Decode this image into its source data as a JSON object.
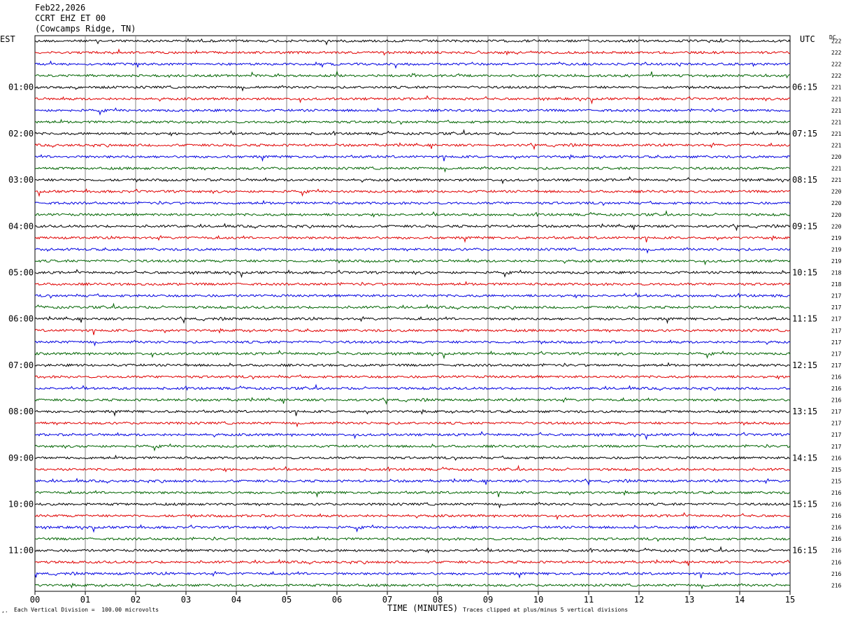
{
  "header": {
    "date": "Feb22,2026",
    "station": "CCRT EHZ ET 00",
    "location": "(Cowcamps Ridge, TN)"
  },
  "left_tz": "EST",
  "right_tz": "UTC",
  "dc_label": "DC",
  "footer": {
    "scale_note": "Each Vertical Division =  100.00 microvolts",
    "clip_note": "Traces clipped at plus/minus 5 vertical divisions"
  },
  "colors": {
    "trace_cycle": [
      "#000000",
      "#e00000",
      "#0000e0",
      "#006400"
    ],
    "grid": "#808080"
  },
  "chart_data": {
    "type": "line",
    "xlabel": "TIME (MINUTES)",
    "xlim": [
      0,
      15
    ],
    "x_ticks": [
      "00",
      "01",
      "02",
      "03",
      "04",
      "05",
      "06",
      "07",
      "08",
      "09",
      "10",
      "11",
      "12",
      "13",
      "14",
      "15"
    ],
    "rows": 48,
    "row_minutes": 15,
    "left_hour_labels": [
      "01:00",
      "02:00",
      "03:00",
      "04:00",
      "05:00",
      "06:00",
      "07:00",
      "08:00",
      "09:00",
      "10:00",
      "11:00"
    ],
    "right_hour_labels": [
      "06:15",
      "07:15",
      "08:15",
      "09:15",
      "10:15",
      "11:15",
      "12:15",
      "13:15",
      "14:15",
      "15:15",
      "16:15"
    ],
    "dc_offsets": [
      222,
      222,
      222,
      222,
      221,
      221,
      221,
      221,
      221,
      221,
      220,
      221,
      221,
      220,
      220,
      220,
      220,
      219,
      219,
      219,
      218,
      218,
      217,
      217,
      217,
      217,
      217,
      217,
      217,
      216,
      216,
      216,
      217,
      217,
      217,
      217,
      216,
      215,
      215,
      216,
      216,
      216,
      216,
      216,
      216,
      216,
      216,
      216
    ],
    "grid": true
  }
}
